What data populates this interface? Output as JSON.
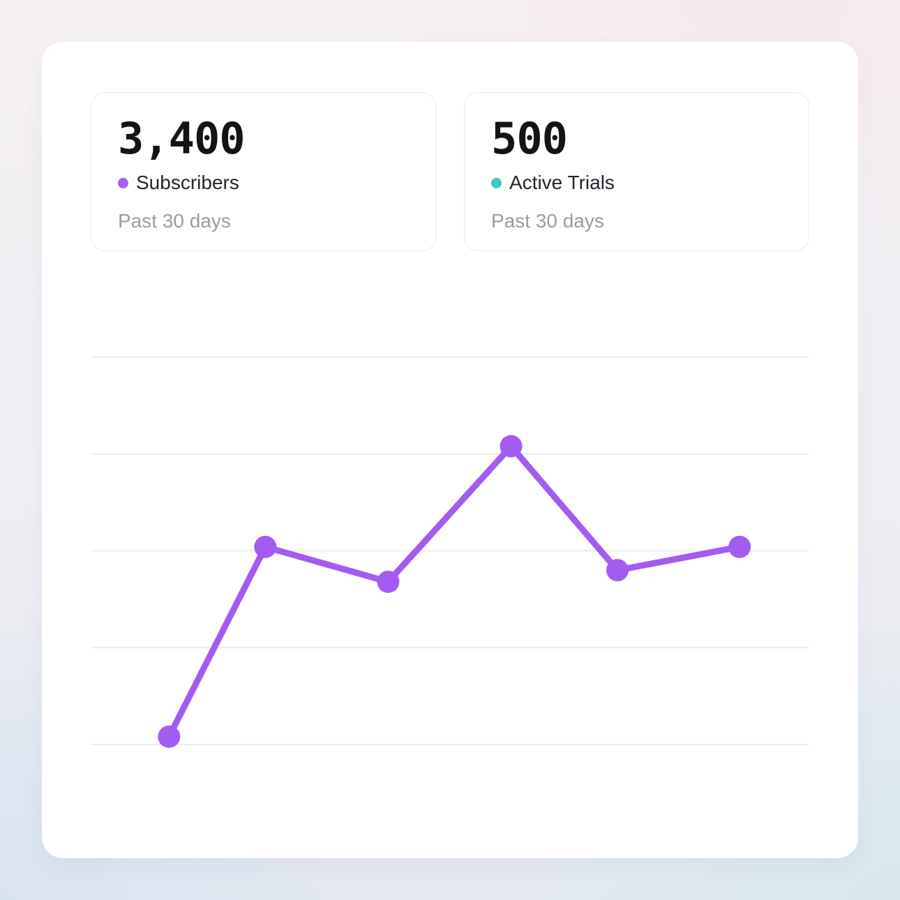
{
  "stats": [
    {
      "value": "3,400",
      "label": "Subscribers",
      "sublabel": "Past 30 days",
      "dot_color": "#aa5cf3"
    },
    {
      "value": "500",
      "label": "Active Trials",
      "sublabel": "Past 30 days",
      "dot_color": "#3fc8c1"
    }
  ],
  "chart_data": {
    "type": "line",
    "title": "",
    "xlabel": "",
    "ylabel": "",
    "series": [
      {
        "name": "Subscribers",
        "color": "#a35bf0",
        "x_fraction": [
          0.109,
          0.243,
          0.414,
          0.585,
          0.733,
          0.903
        ],
        "values": [
          2,
          51,
          42,
          77,
          45,
          51
        ]
      }
    ],
    "ylim": [
      0,
      100
    ],
    "gridline_count": 5,
    "gridline_color": "#ececef",
    "grid": "horizontal-only",
    "axis_tick_labels_visible": false,
    "legend_position": "in-stat-cards",
    "point_radius": 16,
    "line_width": 9
  }
}
